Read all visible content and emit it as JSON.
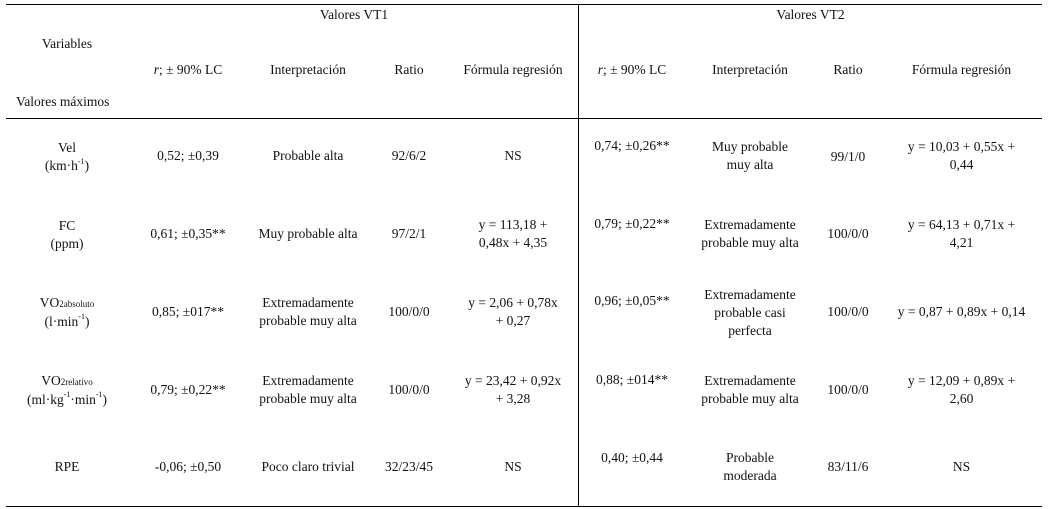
{
  "headers": {
    "group_vt1": "Valores VT1",
    "group_vt2": "Valores VT2",
    "variables": "Variables",
    "max_values": "Valores máximos",
    "r_prefix": "r",
    "r_suffix": "; ± 90% LC",
    "interpretation": "Interpretación",
    "ratio": "Ratio",
    "formula": "Fórmula regresión"
  },
  "rows": [
    {
      "var_line1": "Vel",
      "var_line2": "(km·h",
      "var_line2_sup": "-1",
      "var_line2_end": ")",
      "vt1": {
        "r": "0,52; ±0,39",
        "interp": [
          "Probable alta"
        ],
        "ratio": "92/6/2",
        "formula": [
          "NS"
        ]
      },
      "vt2": {
        "r": "0,74; ±0,26**",
        "interp": [
          "Muy probable",
          "muy alta"
        ],
        "ratio": "99/1/0",
        "formula": [
          "y = 10,03 + 0,55x +",
          "0,44"
        ]
      }
    },
    {
      "var_line1": "FC",
      "var_line2": "(ppm)",
      "vt1": {
        "r": "0,61; ±0,35**",
        "interp": [
          "Muy probable alta"
        ],
        "ratio": "97/2/1",
        "formula": [
          "y = 113,18 +",
          "0,48x + 4,35"
        ]
      },
      "vt2": {
        "r": "0,79; ±0,22**",
        "interp": [
          "Extremadamente",
          "probable muy alta"
        ],
        "ratio": "100/0/0",
        "formula": [
          "y = 64,13 + 0,71x +",
          "4,21"
        ]
      }
    },
    {
      "var_main": "VO",
      "var_sub": "2absoluto",
      "var_line2": "(l·min",
      "var_line2_sup": "-1",
      "var_line2_end": ")",
      "vt1": {
        "r": "0,85; ±017**",
        "interp": [
          "Extremadamente",
          "probable muy alta"
        ],
        "ratio": "100/0/0",
        "formula": [
          "y = 2,06 + 0,78x",
          "+ 0,27"
        ]
      },
      "vt2": {
        "r": "0,96; ±0,05**",
        "interp": [
          "Extremadamente",
          "probable casi",
          "perfecta"
        ],
        "ratio": "100/0/0",
        "formula": [
          "y = 0,87 + 0,89x + 0,14"
        ]
      }
    },
    {
      "var_main": "VO",
      "var_sub": "2relativo",
      "var_line2": "(ml·kg",
      "var_line2_sup": "-1",
      "var_line2_mid": "·min",
      "var_line2_sup2": "-1",
      "var_line2_end": ")",
      "vt1": {
        "r": "0,79; ±0,22**",
        "interp": [
          "Extremadamente",
          "probable muy alta"
        ],
        "ratio": "100/0/0",
        "formula": [
          "y = 23,42 + 0,92x",
          "+ 3,28"
        ]
      },
      "vt2": {
        "r": "0,88; ±014**",
        "interp": [
          "Extremadamente",
          "probable muy alta"
        ],
        "ratio": "100/0/0",
        "formula": [
          "y = 12,09 + 0,89x +",
          "2,60"
        ]
      }
    },
    {
      "var_line1": "RPE",
      "vt1": {
        "r": "-0,06; ±0,50",
        "interp": [
          "Poco claro trivial"
        ],
        "ratio": "32/23/45",
        "formula": [
          "NS"
        ]
      },
      "vt2": {
        "r": "0,40; ±0,44",
        "interp": [
          "Probable",
          "moderada"
        ],
        "ratio": "83/11/6",
        "formula": [
          "NS"
        ]
      }
    }
  ]
}
